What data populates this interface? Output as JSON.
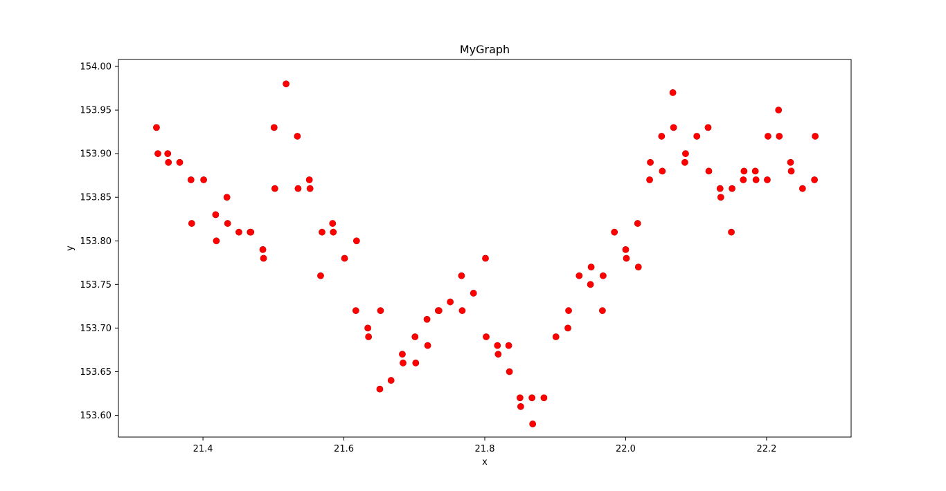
{
  "colors": {
    "background": "#ffffff",
    "axes": "#000000",
    "marker": "#ff0000",
    "marker_edge": "#cc0000"
  },
  "chart_data": {
    "type": "scatter",
    "title": "MyGraph",
    "xlabel": "x",
    "ylabel": "y",
    "xlim": [
      21.28,
      22.32
    ],
    "ylim": [
      153.575,
      154.008
    ],
    "xticks": [
      21.4,
      21.6,
      21.8,
      22.0,
      22.2
    ],
    "xtick_labels": [
      "21.4",
      "21.6",
      "21.8",
      "22.0",
      "22.2"
    ],
    "yticks": [
      153.6,
      153.65,
      153.7,
      153.75,
      153.8,
      153.85,
      153.9,
      153.95,
      154.0
    ],
    "ytick_labels": [
      "153.60",
      "153.65",
      "153.70",
      "153.75",
      "153.80",
      "153.85",
      "153.90",
      "153.95",
      "154.00"
    ],
    "grid": false,
    "legend": "none",
    "marker": "circle",
    "series": [
      {
        "color": "#ff0000",
        "points": [
          [
            21.334,
            153.93
          ],
          [
            21.336,
            153.9
          ],
          [
            21.35,
            153.9
          ],
          [
            21.351,
            153.89
          ],
          [
            21.367,
            153.89
          ],
          [
            21.383,
            153.87
          ],
          [
            21.384,
            153.82
          ],
          [
            21.401,
            153.87
          ],
          [
            21.418,
            153.83
          ],
          [
            21.419,
            153.8
          ],
          [
            21.434,
            153.85
          ],
          [
            21.435,
            153.82
          ],
          [
            21.451,
            153.81
          ],
          [
            21.467,
            153.81
          ],
          [
            21.468,
            153.81
          ],
          [
            21.485,
            153.79
          ],
          [
            21.486,
            153.78
          ],
          [
            21.501,
            153.93
          ],
          [
            21.502,
            153.86
          ],
          [
            21.518,
            153.98
          ],
          [
            21.534,
            153.92
          ],
          [
            21.535,
            153.86
          ],
          [
            21.551,
            153.87
          ],
          [
            21.552,
            153.86
          ],
          [
            21.567,
            153.76
          ],
          [
            21.569,
            153.81
          ],
          [
            21.584,
            153.82
          ],
          [
            21.585,
            153.81
          ],
          [
            21.601,
            153.78
          ],
          [
            21.617,
            153.72
          ],
          [
            21.618,
            153.8
          ],
          [
            21.634,
            153.7
          ],
          [
            21.635,
            153.69
          ],
          [
            21.651,
            153.63
          ],
          [
            21.652,
            153.72
          ],
          [
            21.667,
            153.64
          ],
          [
            21.683,
            153.67
          ],
          [
            21.684,
            153.66
          ],
          [
            21.701,
            153.69
          ],
          [
            21.702,
            153.66
          ],
          [
            21.718,
            153.71
          ],
          [
            21.719,
            153.68
          ],
          [
            21.734,
            153.72
          ],
          [
            21.735,
            153.72
          ],
          [
            21.751,
            153.73
          ],
          [
            21.767,
            153.76
          ],
          [
            21.768,
            153.72
          ],
          [
            21.784,
            153.74
          ],
          [
            21.801,
            153.78
          ],
          [
            21.802,
            153.69
          ],
          [
            21.818,
            153.68
          ],
          [
            21.819,
            153.67
          ],
          [
            21.834,
            153.68
          ],
          [
            21.835,
            153.65
          ],
          [
            21.85,
            153.62
          ],
          [
            21.851,
            153.61
          ],
          [
            21.867,
            153.62
          ],
          [
            21.868,
            153.59
          ],
          [
            21.884,
            153.62
          ],
          [
            21.901,
            153.69
          ],
          [
            21.918,
            153.7
          ],
          [
            21.919,
            153.72
          ],
          [
            21.934,
            153.76
          ],
          [
            21.951,
            153.77
          ],
          [
            21.95,
            153.75
          ],
          [
            21.967,
            153.72
          ],
          [
            21.968,
            153.76
          ],
          [
            21.984,
            153.81
          ],
          [
            22.0,
            153.79
          ],
          [
            22.001,
            153.78
          ],
          [
            22.017,
            153.82
          ],
          [
            22.018,
            153.77
          ],
          [
            22.034,
            153.87
          ],
          [
            22.035,
            153.89
          ],
          [
            22.051,
            153.92
          ],
          [
            22.052,
            153.88
          ],
          [
            22.067,
            153.97
          ],
          [
            22.068,
            153.93
          ],
          [
            22.084,
            153.89
          ],
          [
            22.085,
            153.9
          ],
          [
            22.101,
            153.92
          ],
          [
            22.117,
            153.93
          ],
          [
            22.118,
            153.88
          ],
          [
            22.134,
            153.86
          ],
          [
            22.135,
            153.85
          ],
          [
            22.15,
            153.81
          ],
          [
            22.151,
            153.86
          ],
          [
            22.167,
            153.87
          ],
          [
            22.168,
            153.88
          ],
          [
            22.184,
            153.88
          ],
          [
            22.185,
            153.87
          ],
          [
            22.201,
            153.87
          ],
          [
            22.202,
            153.92
          ],
          [
            22.217,
            153.95
          ],
          [
            22.218,
            153.92
          ],
          [
            22.234,
            153.89
          ],
          [
            22.235,
            153.88
          ],
          [
            22.251,
            153.86
          ],
          [
            22.268,
            153.87
          ],
          [
            22.269,
            153.92
          ]
        ]
      }
    ]
  }
}
